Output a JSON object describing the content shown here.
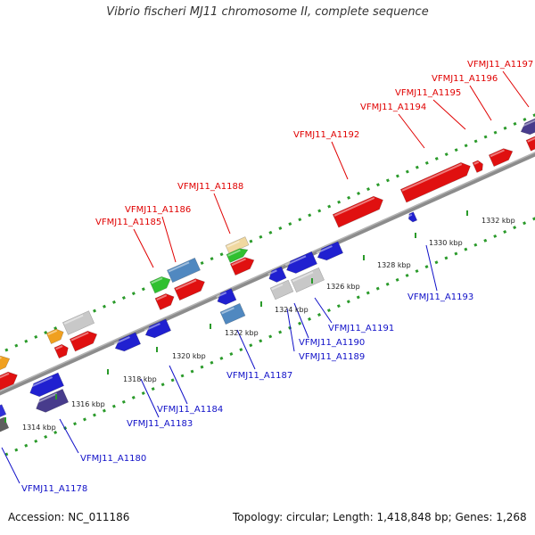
{
  "title": "Vibrio fischeri MJ11 chromosome II, complete sequence",
  "accession": "Accession: NC_011186",
  "summary": "Topology: circular; Length: 1,418,848 bp; Genes: 1,268",
  "colors": {
    "backbone": "#8c8c8c",
    "forward_label": "#e00000",
    "reverse_label": "#1010c8",
    "track_dots": "#2a9a2a"
  },
  "ticks": [
    "1314 kbp",
    "1316 kbp",
    "1318 kbp",
    "1320 kbp",
    "1322 kbp",
    "1324 kbp",
    "1326 kbp",
    "1328 kbp",
    "1330 kbp",
    "1332 kbp"
  ],
  "forward_labels": [
    "VFMJ11_A1185",
    "VFMJ11_A1186",
    "VFMJ11_A1188",
    "VFMJ11_A1192",
    "VFMJ11_A1194",
    "VFMJ11_A1195",
    "VFMJ11_A1196",
    "VFMJ11_A1197"
  ],
  "reverse_labels": [
    "VFMJ11_A1178",
    "VFMJ11_A1180",
    "VFMJ11_A1183",
    "VFMJ11_A1184",
    "VFMJ11_A1187",
    "VFMJ11_A1189",
    "VFMJ11_A1190",
    "VFMJ11_A1191",
    "VFMJ11_A1193"
  ]
}
